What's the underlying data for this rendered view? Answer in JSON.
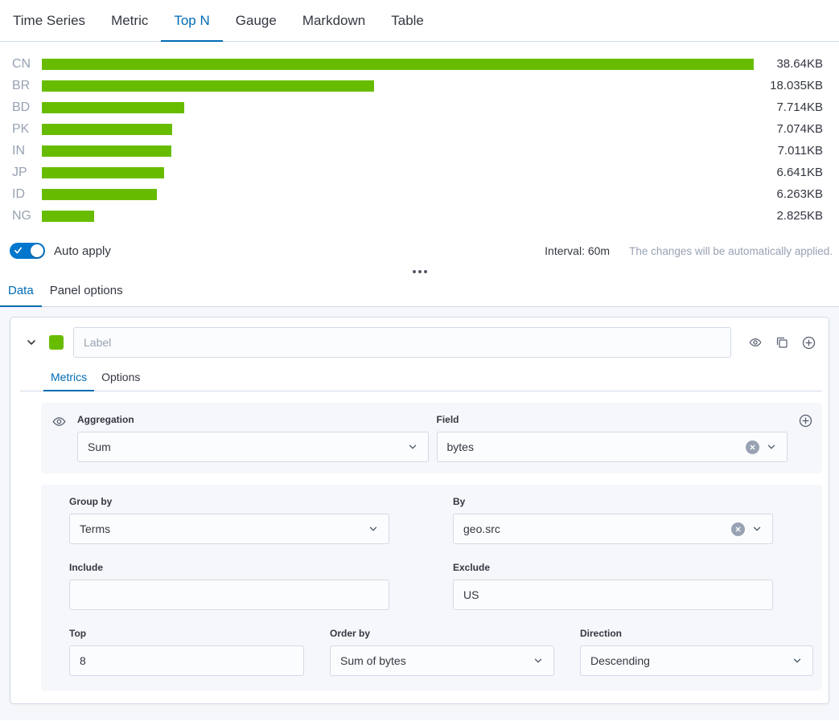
{
  "colors": {
    "accent_blue": "#006BB4",
    "bar_green": "#68BC00",
    "toggle_blue": "#0077CC"
  },
  "top_tabs": {
    "items": [
      {
        "label": "Time Series"
      },
      {
        "label": "Metric"
      },
      {
        "label": "Top N"
      },
      {
        "label": "Gauge"
      },
      {
        "label": "Markdown"
      },
      {
        "label": "Table"
      }
    ],
    "active": "Top N"
  },
  "chart_data": {
    "type": "bar",
    "orientation": "horizontal",
    "title": "Top N",
    "categories": [
      "CN",
      "BR",
      "BD",
      "PK",
      "IN",
      "JP",
      "ID",
      "NG"
    ],
    "values": [
      38.64,
      18.035,
      7.714,
      7.074,
      7.011,
      6.641,
      6.263,
      2.825
    ],
    "value_labels": [
      "38.64KB",
      "18.035KB",
      "7.714KB",
      "7.074KB",
      "7.011KB",
      "6.641KB",
      "6.263KB",
      "2.825KB"
    ],
    "unit": "KB",
    "xlim": [
      0,
      38.64
    ],
    "bar_color": "#68BC00",
    "grid": false,
    "legend": "none"
  },
  "apply_bar": {
    "auto_apply_label": "Auto apply",
    "toggle_on": true,
    "interval_text": "Interval: 60m",
    "note_text": "The changes will be automatically applied."
  },
  "editor_tabs": {
    "data_label": "Data",
    "panel_options_label": "Panel options",
    "active": "Data"
  },
  "series": {
    "label_placeholder": "Label",
    "color_swatch": "#68BC00",
    "tabs": {
      "metrics": "Metrics",
      "options": "Options",
      "active": "Metrics"
    },
    "metrics_section": {
      "aggregation": {
        "label": "Aggregation",
        "value": "Sum"
      },
      "field": {
        "label": "Field",
        "value": "bytes"
      }
    },
    "group_section": {
      "group_by": {
        "label": "Group by",
        "value": "Terms"
      },
      "by": {
        "label": "By",
        "value": "geo.src"
      },
      "include": {
        "label": "Include",
        "value": ""
      },
      "exclude": {
        "label": "Exclude",
        "value": "US"
      },
      "top": {
        "label": "Top",
        "value": "8"
      },
      "order_by": {
        "label": "Order by",
        "value": "Sum of bytes"
      },
      "direction": {
        "label": "Direction",
        "value": "Descending"
      }
    }
  }
}
